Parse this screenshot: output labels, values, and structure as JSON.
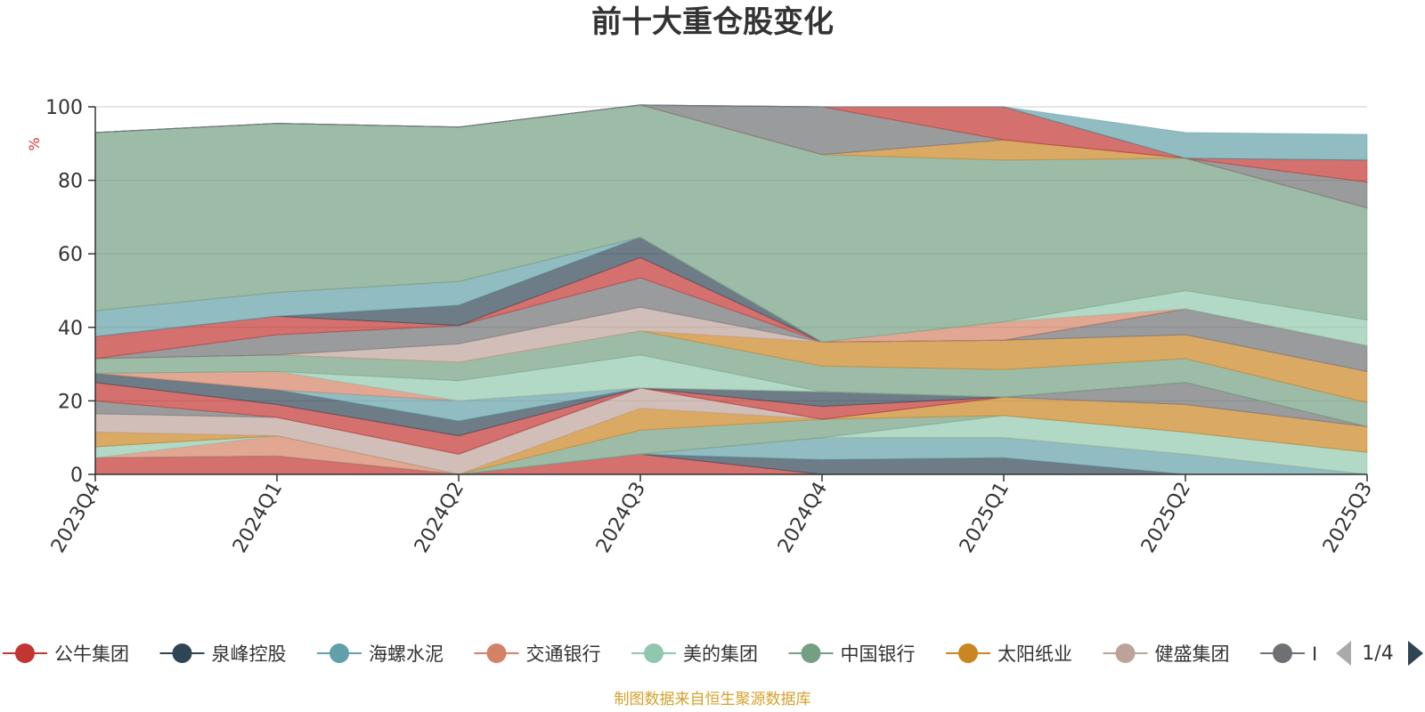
{
  "chart_data": {
    "type": "area",
    "stacked": true,
    "title": "前十大重仓股变化",
    "ylabel": "%",
    "ylim": [
      0,
      100
    ],
    "yticks": [
      "0",
      "20",
      "40",
      "60",
      "80",
      "100"
    ],
    "categories": [
      "2023Q4",
      "2024Q1",
      "2024Q2",
      "2024Q3",
      "2024Q4",
      "2025Q1",
      "2025Q2",
      "2025Q3"
    ],
    "grid": true,
    "legend_position": "bottom",
    "series": [
      {
        "name": "公牛集团",
        "color": "#c23531",
        "values": [
          4.5,
          5,
          0,
          5.5,
          0,
          0,
          0,
          0
        ]
      },
      {
        "name": "泉峰控股",
        "color": "#2f4554",
        "values": [
          0,
          0,
          0,
          0,
          4,
          4.5,
          0,
          0
        ]
      },
      {
        "name": "海螺水泥",
        "color": "#61a0a8",
        "values": [
          0,
          0,
          0,
          0,
          6,
          5.5,
          5.5,
          0
        ]
      },
      {
        "name": "交通银行",
        "color": "#d48265",
        "values": [
          0,
          5.5,
          0,
          0,
          0,
          0,
          0,
          0
        ]
      },
      {
        "name": "美的集团",
        "color": "#91c7ae",
        "values": [
          3,
          0,
          0,
          0,
          0,
          6,
          6,
          6
        ]
      },
      {
        "name": "中国银行",
        "color": "#749f83",
        "values": [
          0,
          0,
          0,
          6.5,
          5,
          0,
          0,
          0
        ]
      },
      {
        "name": "太阳纸业",
        "color": "#ca8622",
        "values": [
          4,
          0,
          0,
          6,
          0,
          5,
          7.5,
          7
        ]
      },
      {
        "name": "健盛集团",
        "color": "#bda29a",
        "values": [
          5,
          5,
          5.5,
          5.5,
          0,
          0,
          0,
          0
        ]
      },
      {
        "name": "",
        "color": "#6e7074",
        "values": [
          3.5,
          0,
          0,
          0,
          0,
          0,
          6,
          0
        ]
      },
      {
        "name": "",
        "color": "#c23531",
        "values": [
          5,
          3.5,
          5,
          0,
          3.5,
          0,
          0,
          0
        ]
      },
      {
        "name": "",
        "color": "#2f4554",
        "values": [
          2.5,
          4,
          4,
          0,
          4,
          0,
          0,
          0
        ]
      },
      {
        "name": "",
        "color": "#61a0a8",
        "values": [
          0,
          0,
          5.5,
          0,
          0,
          0,
          0,
          0
        ]
      },
      {
        "name": "",
        "color": "#d48265",
        "values": [
          0,
          5,
          0,
          0,
          0,
          0,
          0,
          0
        ]
      },
      {
        "name": "",
        "color": "#91c7ae",
        "values": [
          0,
          0,
          5.5,
          9,
          0,
          0,
          0,
          0
        ]
      },
      {
        "name": "",
        "color": "#749f83",
        "values": [
          4,
          4.5,
          5,
          6.5,
          7,
          7.5,
          6.5,
          6.5
        ]
      },
      {
        "name": "",
        "color": "#ca8622",
        "values": [
          0,
          0,
          0,
          0,
          6.5,
          8,
          6.5,
          8.5
        ]
      },
      {
        "name": "",
        "color": "#bda29a",
        "values": [
          0,
          0,
          5,
          6.5,
          0,
          0,
          0,
          0
        ]
      },
      {
        "name": "",
        "color": "#6e7074",
        "values": [
          0,
          5.5,
          5,
          8,
          0,
          0,
          7,
          7
        ]
      },
      {
        "name": "",
        "color": "#c23531",
        "values": [
          6,
          5,
          0,
          5.5,
          0,
          0,
          0,
          0
        ]
      },
      {
        "name": "",
        "color": "#2f4554",
        "values": [
          0,
          0,
          5.5,
          5.5,
          0,
          0,
          0,
          0
        ]
      },
      {
        "name": "",
        "color": "#61a0a8",
        "values": [
          7,
          6.5,
          6.5,
          0,
          0,
          0,
          0,
          0
        ]
      },
      {
        "name": "",
        "color": "#d48265",
        "values": [
          0,
          0,
          0,
          0,
          0,
          5,
          0,
          0
        ]
      },
      {
        "name": "",
        "color": "#91c7ae",
        "values": [
          0,
          0,
          0,
          0,
          0,
          0,
          5,
          7
        ]
      },
      {
        "name": "",
        "color": "#749f83",
        "values": [
          48.5,
          46,
          42,
          36,
          51,
          44,
          36,
          30.5
        ]
      },
      {
        "name": "",
        "color": "#ca8622",
        "values": [
          0,
          0,
          0,
          0,
          0,
          5.5,
          0,
          0
        ]
      },
      {
        "name": "",
        "color": "#bda29a",
        "values": [
          0,
          0,
          0,
          0,
          0,
          0,
          0,
          0
        ]
      },
      {
        "name": "",
        "color": "#6e7074",
        "values": [
          0,
          0,
          0,
          0,
          13,
          0,
          0,
          7
        ]
      },
      {
        "name": "",
        "color": "#c23531",
        "values": [
          0,
          0,
          0,
          0,
          0,
          9,
          0,
          6
        ]
      },
      {
        "name": "",
        "color": "#2f4554",
        "values": [
          0,
          0,
          0,
          0,
          0,
          0,
          0,
          0
        ]
      },
      {
        "name": "",
        "color": "#61a0a8",
        "values": [
          0,
          0,
          0,
          0,
          0,
          0,
          7,
          7
        ]
      }
    ]
  },
  "legend": {
    "visible_count": 9,
    "truncated_label": "Ⅰ",
    "page_indicator": "1/4"
  },
  "footer": {
    "source_text": "制图数据来自恒生聚源数据库",
    "source_color": "#d4a12a"
  },
  "colors": {
    "axis": "#333333",
    "grid": "#cccccc",
    "ylabel": "#e03030",
    "pager_active": "#2f4554",
    "pager_inactive": "#aaaaaa"
  }
}
